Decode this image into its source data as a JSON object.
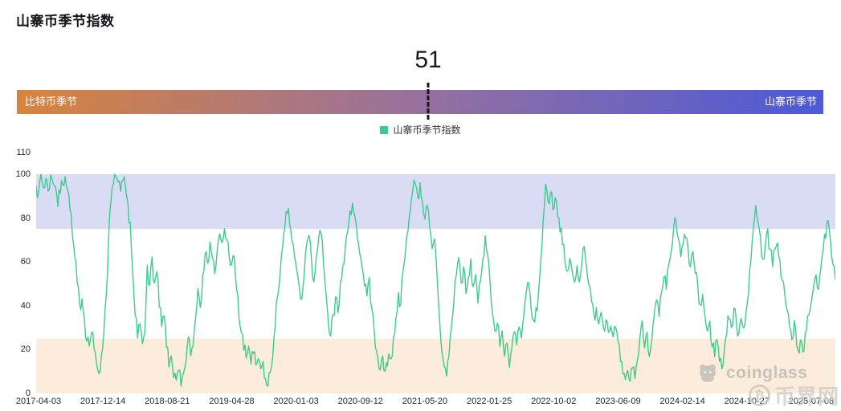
{
  "header": {
    "title": "山寨币季节指数"
  },
  "gauge": {
    "value": 51,
    "value_label": "51",
    "left_label": "比特币季节",
    "right_label": "山寨币季节",
    "gradient_left": "#d8843c",
    "gradient_mid": "#96719f",
    "gradient_right": "#4c59d8"
  },
  "legend": {
    "label": "山寨币季节指数",
    "color": "#3ecb8e"
  },
  "watermarks": {
    "coinglass": "coinglass",
    "bijie": "币界网",
    "coin_symbol": "₿"
  },
  "chart_data": {
    "type": "line",
    "title": "山寨币季节指数",
    "series_name": "山寨币季节指数",
    "line_color": "#3ecb8e",
    "ylim": [
      0,
      110
    ],
    "yticks": [
      110,
      100,
      80,
      60,
      40,
      20,
      0
    ],
    "grid": false,
    "legend_position": "top-center",
    "x_tick_labels": [
      "2017-04-03",
      "2017-12-14",
      "2018-08-21",
      "2019-04-28",
      "2020-01-03",
      "2020-09-12",
      "2021-05-20",
      "2022-01-25",
      "2022-10-02",
      "2023-06-09",
      "2024-02-14",
      "2024-10-27",
      "2025-07-08"
    ],
    "bands": [
      {
        "name": "altcoin-season-zone",
        "from": 75,
        "to": 100,
        "color": "#dadcf6"
      },
      {
        "name": "bitcoin-season-zone",
        "from": 0,
        "to": 25,
        "color": "#fbecdb"
      }
    ],
    "current_value": 51,
    "values": [
      96,
      90,
      100,
      94,
      98,
      93,
      99,
      97,
      95,
      86,
      92,
      96,
      100,
      93,
      85,
      72,
      62,
      50,
      40,
      44,
      34,
      25,
      22,
      28,
      20,
      14,
      10,
      16,
      28,
      45,
      70,
      88,
      95,
      100,
      96,
      91,
      97,
      93,
      86,
      78,
      55,
      35,
      25,
      32,
      22,
      28,
      60,
      48,
      62,
      50,
      55,
      40,
      30,
      35,
      22,
      12,
      18,
      8,
      5,
      10,
      3,
      8,
      15,
      25,
      18,
      22,
      35,
      48,
      40,
      55,
      65,
      58,
      70,
      62,
      55,
      65,
      72,
      68,
      75,
      70,
      63,
      58,
      62,
      48,
      35,
      28,
      20,
      16,
      22,
      14,
      18,
      12,
      16,
      10,
      14,
      6,
      3,
      10,
      18,
      30,
      45,
      55,
      65,
      75,
      83,
      78,
      70,
      62,
      55,
      48,
      42,
      55,
      68,
      72,
      60,
      52,
      62,
      70,
      73,
      60,
      45,
      32,
      25,
      35,
      45,
      38,
      50,
      58,
      65,
      75,
      82,
      88,
      80,
      72,
      65,
      58,
      50,
      45,
      52,
      40,
      28,
      18,
      12,
      16,
      10,
      14,
      18,
      15,
      25,
      35,
      45,
      42,
      55,
      65,
      75,
      85,
      92,
      97,
      90,
      95,
      88,
      80,
      85,
      75,
      65,
      70,
      55,
      35,
      20,
      12,
      8,
      18,
      30,
      42,
      55,
      62,
      50,
      58,
      45,
      52,
      60,
      48,
      55,
      42,
      50,
      60,
      72,
      65,
      50,
      38,
      28,
      32,
      22,
      28,
      18,
      24,
      12,
      20,
      28,
      22,
      30,
      25,
      35,
      45,
      50,
      40,
      32,
      38,
      45,
      60,
      80,
      95,
      88,
      92,
      85,
      90,
      82,
      75,
      68,
      60,
      55,
      62,
      55,
      50,
      58,
      52,
      60,
      68,
      58,
      48,
      42,
      35,
      40,
      32,
      38,
      30,
      35,
      28,
      32,
      25,
      30,
      22,
      15,
      8,
      5,
      10,
      6,
      12,
      8,
      15,
      25,
      32,
      22,
      28,
      18,
      25,
      35,
      42,
      35,
      45,
      52,
      48,
      58,
      65,
      75,
      78,
      70,
      62,
      68,
      72,
      65,
      58,
      64,
      55,
      48,
      40,
      45,
      35,
      28,
      32,
      22,
      18,
      25,
      15,
      12,
      20,
      28,
      35,
      30,
      38,
      32,
      28,
      35,
      30,
      38,
      45,
      60,
      75,
      87,
      78,
      70,
      62,
      68,
      74,
      65,
      58,
      65,
      70,
      60,
      52,
      45,
      38,
      30,
      25,
      32,
      22,
      18,
      25,
      20,
      28,
      35,
      42,
      50,
      55,
      48,
      58,
      65,
      72,
      78,
      68,
      58,
      51
    ]
  }
}
